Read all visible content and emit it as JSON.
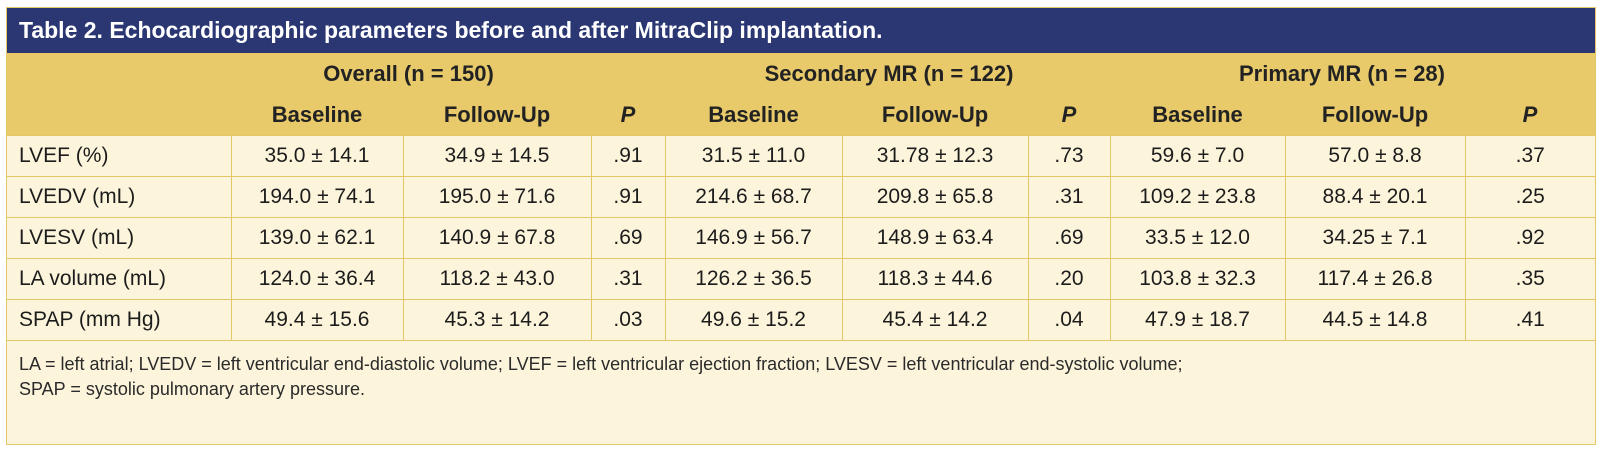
{
  "title": "Table 2. Echocardiographic parameters before and after MitraClip implantation.",
  "groups": [
    "Overall (n = 150)",
    "Secondary MR (n = 122)",
    "Primary MR (n = 28)"
  ],
  "subheaders": [
    "Baseline",
    "Follow-Up",
    "P",
    "Baseline",
    "Follow-Up",
    "P",
    "Baseline",
    "Follow-Up",
    "P"
  ],
  "rows": [
    {
      "label": "LVEF (%)",
      "cells": [
        "35.0 ± 14.1",
        "34.9 ± 14.5",
        ".91",
        "31.5 ± 11.0",
        "31.78 ± 12.3",
        ".73",
        "59.6 ± 7.0",
        "57.0 ± 8.8",
        ".37"
      ]
    },
    {
      "label": "LVEDV (mL)",
      "cells": [
        "194.0 ± 74.1",
        "195.0 ± 71.6",
        ".91",
        "214.6 ± 68.7",
        "209.8 ± 65.8",
        ".31",
        "109.2 ± 23.8",
        "88.4 ± 20.1",
        ".25"
      ]
    },
    {
      "label": "LVESV (mL)",
      "cells": [
        "139.0 ± 62.1",
        "140.9 ± 67.8",
        ".69",
        "146.9 ± 56.7",
        "148.9 ± 63.4",
        ".69",
        "33.5 ± 12.0",
        "34.25 ± 7.1",
        ".92"
      ]
    },
    {
      "label": "LA volume (mL)",
      "cells": [
        "124.0 ± 36.4",
        "118.2 ± 43.0",
        ".31",
        "126.2 ± 36.5",
        "118.3 ± 44.6",
        ".20",
        "103.8 ± 32.3",
        "117.4 ± 26.8",
        ".35"
      ]
    },
    {
      "label": "SPAP (mm Hg)",
      "cells": [
        "49.4 ± 15.6",
        "45.3 ± 14.2",
        ".03",
        "49.6 ± 15.2",
        "45.4 ± 14.2",
        ".04",
        "47.9 ± 18.7",
        "44.5 ± 14.8",
        ".41"
      ]
    }
  ],
  "footnote": {
    "line1": "LA = left atrial; LVEDV = left ventricular end-diastolic volume; LVEF = left ventricular ejection fraction; LVESV = left ventricular end-systolic volume;",
    "line2": "SPAP = systolic pulmonary artery pressure."
  },
  "colors": {
    "title_bg": "#2b3773",
    "header_bg": "#e8ca6b",
    "body_bg": "#fcf5dc",
    "rule": "#e3c76a"
  }
}
